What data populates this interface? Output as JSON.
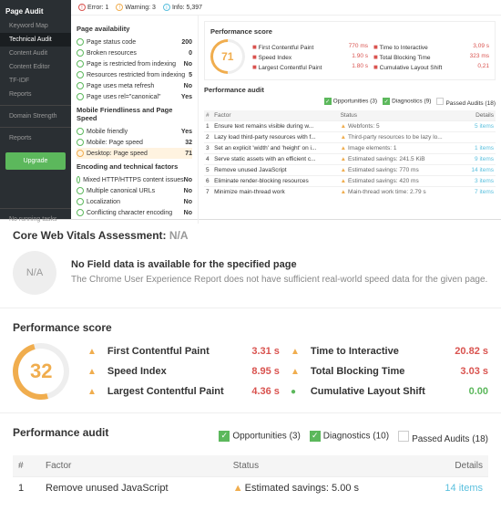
{
  "sidebar": {
    "title": "Page Audit",
    "items": [
      "Keyword Map",
      "Technical Audit",
      "Content Audit",
      "Content Editor",
      "TF-IDF",
      "Reports"
    ],
    "active": 1,
    "groups": [
      "Domain Strength",
      "Reports"
    ],
    "upgrade": "Upgrade",
    "footer": "No running tasks"
  },
  "alerts": {
    "error": "Error: 1",
    "warning": "Warning: 3",
    "info": "Info: 5,397"
  },
  "page_avail": {
    "title": "Page availability",
    "rows": [
      {
        "icon": "g",
        "label": "Page status code",
        "val": "200"
      },
      {
        "icon": "g",
        "label": "Broken resources",
        "val": "0"
      },
      {
        "icon": "g",
        "label": "Page is restricted from indexing",
        "val": "No"
      },
      {
        "icon": "g",
        "label": "Resources restricted from indexing",
        "val": "5"
      },
      {
        "icon": "g",
        "label": "Page uses meta refresh",
        "val": "No"
      },
      {
        "icon": "g",
        "label": "Page uses rel=\"canonical\"",
        "val": "Yes"
      }
    ]
  },
  "mobile": {
    "title": "Mobile Friendliness and Page Speed",
    "rows": [
      {
        "icon": "g",
        "label": "Mobile friendly",
        "val": "Yes"
      },
      {
        "icon": "g",
        "label": "Mobile: Page speed",
        "val": "32"
      },
      {
        "icon": "o",
        "label": "Desktop: Page speed",
        "val": "71",
        "active": true
      }
    ]
  },
  "encoding": {
    "title": "Encoding and technical factors",
    "rows": [
      {
        "icon": "g",
        "label": "Mixed HTTP/HTTPS content issues",
        "val": "No"
      },
      {
        "icon": "g",
        "label": "Multiple canonical URLs",
        "val": "No"
      },
      {
        "icon": "g",
        "label": "Localization",
        "val": "No"
      },
      {
        "icon": "g",
        "label": "Conflicting character encoding",
        "val": "No"
      }
    ]
  },
  "perf_small": {
    "title": "Performance score",
    "score": "71",
    "metrics": [
      {
        "b": "r",
        "label": "First Contentful Paint",
        "val": "770 ms",
        "b2": "r",
        "label2": "Time to Interactive",
        "val2": "3,09 s"
      },
      {
        "b": "r",
        "label": "Speed Index",
        "val": "1.90 s",
        "b2": "r",
        "label2": "Total Blocking Time",
        "val2": "323 ms"
      },
      {
        "b": "r",
        "label": "Largest Contentful Paint",
        "val": "1.80 s",
        "b2": "r",
        "label2": "Cumulative Layout Shift",
        "val2": "0,21"
      }
    ]
  },
  "audit_small": {
    "title": "Performance audit",
    "tabs": {
      "opp": "Opportunities (3)",
      "diag": "Diagnostics (9)",
      "pass": "Passed Audits (18)"
    },
    "cols": [
      "#",
      "Factor",
      "Status",
      "Details"
    ],
    "rows": [
      {
        "n": "1",
        "f": "Ensure text remains visible during w...",
        "s": "Webfonts: 5",
        "d": "5 items"
      },
      {
        "n": "2",
        "f": "Lazy load third-party resources with f...",
        "s": "Third-party resources to be lazy lo...",
        "d": ""
      },
      {
        "n": "3",
        "f": "Set an explicit 'width' and 'height' on i...",
        "s": "Image elements: 1",
        "d": "1 items"
      },
      {
        "n": "4",
        "f": "Serve static assets with an efficient c...",
        "s": "Estimated savings: 241.5 KiB",
        "d": "9 items"
      },
      {
        "n": "5",
        "f": "Remove unused JavaScript",
        "s": "Estimated savings: 770 ms",
        "d": "14 items"
      },
      {
        "n": "6",
        "f": "Eliminate render-blocking resources",
        "s": "Estimated savings: 420 ms",
        "d": "3 items"
      },
      {
        "n": "7",
        "f": "Minimize main-thread work",
        "s": "Main-thread work time: 2.79 s",
        "d": "7 items"
      }
    ]
  },
  "cwv": {
    "title": "Core Web Vitals Assessment: ",
    "status": "N/A",
    "badge": "N/A",
    "h": "No Field data is available for the specified page",
    "p": "The Chrome User Experience Report does not have sufficient real-world speed data for the given page."
  },
  "perf_big": {
    "title": "Performance score",
    "score": "32",
    "metrics": [
      {
        "label": "First Contentful Paint",
        "val": "3.31 s",
        "label2": "Time to Interactive",
        "val2": "20.82 s"
      },
      {
        "label": "Speed Index",
        "val": "8.95 s",
        "label2": "Total Blocking Time",
        "val2": "3.03 s"
      },
      {
        "label": "Largest Contentful Paint",
        "val": "4.36 s",
        "label2": "Cumulative Layout Shift",
        "val2": "0.00",
        "g2": true
      }
    ]
  },
  "audit_big": {
    "title": "Performance audit",
    "tabs": {
      "opp": "Opportunities (3)",
      "diag": "Diagnostics (10)",
      "pass": "Passed Audits (18)"
    },
    "cols": [
      "#",
      "Factor",
      "Status",
      "Details"
    ],
    "row": {
      "n": "1",
      "f": "Remove unused JavaScript",
      "s": "Estimated savings: 5.00 s",
      "d": "14 items"
    }
  }
}
